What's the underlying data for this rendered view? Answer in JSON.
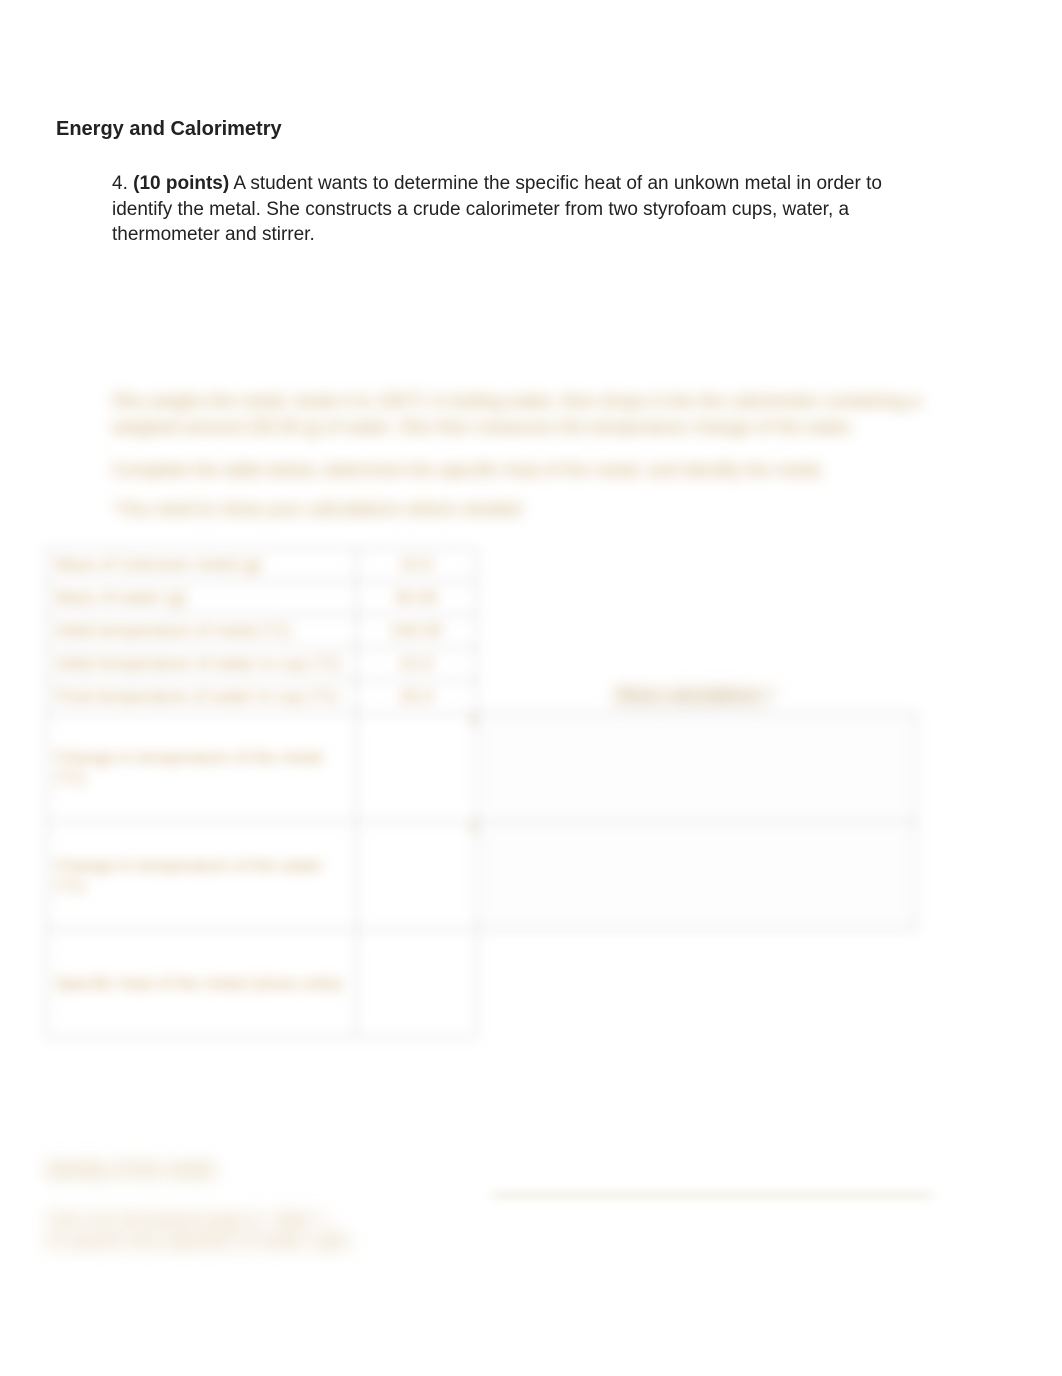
{
  "title": "Energy and Calorimetry",
  "question": {
    "number": "4.",
    "points_label": "(10 points)",
    "text": " A student wants to determine the specific heat of an unkown metal in order to identify the metal.  She constructs a crude calorimeter from two styrofoam cups, water, a thermometer and stirrer."
  },
  "blurred": {
    "para1": "She weighs the metal, heats it to 100°C in boiling water, then drops it into the calorimeter containing a weighed amount (50.00 g) of water.   She then measures the temperature change of the water.",
    "para2": "Complete the table below, determine the specific heat of the metal, and identify the metal.",
    "para3": "*You need to show your calculations where needed.",
    "show_calc_header": "Show calculations *"
  },
  "table": {
    "rows_short": [
      {
        "label": "Mass of Unknown metal (g)",
        "value": "15.0"
      },
      {
        "label": "Mass of water (g)",
        "value": "50.00"
      },
      {
        "label": "Initial temperature of metal  (°C)",
        "value": "100.00"
      },
      {
        "label": "Initial temperature of water in cup   (°C)",
        "value": "22.0"
      },
      {
        "label": "Final temperature of water in cup   (°C)",
        "value": "25.0"
      }
    ],
    "rows_tall": [
      {
        "label": "Change in temperature of the metal   (°C)",
        "value": ""
      },
      {
        "label": "Change in temperature of the water   (°C)",
        "value": ""
      },
      {
        "label": "Specific heat of the metal (show units)",
        "value": ""
      }
    ]
  },
  "footer": {
    "identity": "Identity of the metal:",
    "note": "*Hint: the old textbook page   (C. Table 7 - for specific heat capacities of metals, right)"
  },
  "colors": {
    "text": "#222222",
    "blurred_text": "#c9a76a",
    "border": "#bbbbbb",
    "background": "#ffffff"
  }
}
